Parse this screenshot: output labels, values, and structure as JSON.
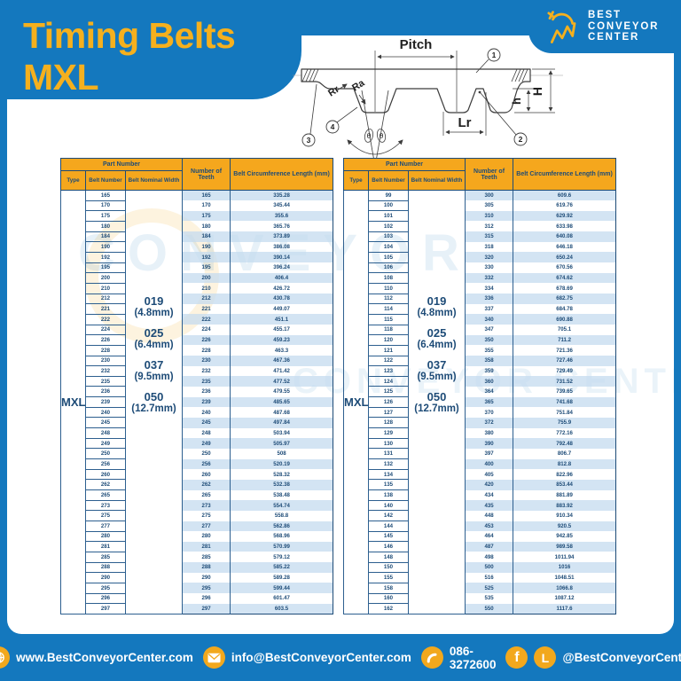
{
  "page": {
    "title": "Timing Belts MXL"
  },
  "logo": {
    "line1": "BEST",
    "line2": "CONVEYOR",
    "line3": "CENTER"
  },
  "watermark": {
    "text1": "CONVEYOR",
    "text2": "CONVEYOR CENTER"
  },
  "diagram": {
    "pitch": "Pitch",
    "rr": "Rr",
    "ra": "Ra",
    "lr": "Lr",
    "big_h": "H",
    "small_h": "h",
    "theta1": "θ",
    "theta2": "θ",
    "callout1": "1",
    "callout2": "2",
    "callout3": "3",
    "callout4": "4"
  },
  "table_headers": {
    "part_number": "Part Number",
    "type": "Type",
    "belt_number": "Belt Number",
    "belt_nominal_width": "Belt Nominal Width",
    "number_of_teeth": "Number of Teeth",
    "belt_circumference_length": "Belt Circumference Length (mm)"
  },
  "type_value": "MXL",
  "nominal_widths": [
    {
      "code": "019",
      "size": "(4.8mm)"
    },
    {
      "code": "025",
      "size": "(6.4mm)"
    },
    {
      "code": "037",
      "size": "(9.5mm)"
    },
    {
      "code": "050",
      "size": "(12.7mm)"
    }
  ],
  "left_table": {
    "rows": [
      [
        "165",
        "165",
        "335.28"
      ],
      [
        "170",
        "170",
        "345.44"
      ],
      [
        "175",
        "175",
        "355.6"
      ],
      [
        "180",
        "180",
        "365.76"
      ],
      [
        "184",
        "184",
        "373.89"
      ],
      [
        "190",
        "190",
        "386.08"
      ],
      [
        "192",
        "192",
        "390.14"
      ],
      [
        "195",
        "195",
        "396.24"
      ],
      [
        "200",
        "200",
        "406.4"
      ],
      [
        "210",
        "210",
        "426.72"
      ],
      [
        "212",
        "212",
        "430.78"
      ],
      [
        "221",
        "221",
        "449.07"
      ],
      [
        "222",
        "222",
        "451.1"
      ],
      [
        "224",
        "224",
        "455.17"
      ],
      [
        "226",
        "226",
        "459.23"
      ],
      [
        "228",
        "228",
        "463.3"
      ],
      [
        "230",
        "230",
        "467.36"
      ],
      [
        "232",
        "232",
        "471.42"
      ],
      [
        "235",
        "235",
        "477.52"
      ],
      [
        "236",
        "236",
        "479.55"
      ],
      [
        "239",
        "239",
        "485.65"
      ],
      [
        "240",
        "240",
        "487.68"
      ],
      [
        "245",
        "245",
        "497.84"
      ],
      [
        "248",
        "248",
        "503.94"
      ],
      [
        "249",
        "249",
        "505.97"
      ],
      [
        "250",
        "250",
        "508"
      ],
      [
        "256",
        "256",
        "520.19"
      ],
      [
        "260",
        "260",
        "528.32"
      ],
      [
        "262",
        "262",
        "532.38"
      ],
      [
        "265",
        "265",
        "538.48"
      ],
      [
        "273",
        "273",
        "554.74"
      ],
      [
        "275",
        "275",
        "558.8"
      ],
      [
        "277",
        "277",
        "562.86"
      ],
      [
        "280",
        "280",
        "568.96"
      ],
      [
        "281",
        "281",
        "570.99"
      ],
      [
        "285",
        "285",
        "579.12"
      ],
      [
        "288",
        "288",
        "585.22"
      ],
      [
        "290",
        "290",
        "589.28"
      ],
      [
        "295",
        "295",
        "599.44"
      ],
      [
        "296",
        "296",
        "601.47"
      ],
      [
        "297",
        "297",
        "603.5"
      ]
    ]
  },
  "right_table": {
    "rows": [
      [
        "99",
        "300",
        "609.6"
      ],
      [
        "100",
        "305",
        "619.76"
      ],
      [
        "101",
        "310",
        "629.92"
      ],
      [
        "102",
        "312",
        "633.98"
      ],
      [
        "103",
        "315",
        "640.08"
      ],
      [
        "104",
        "318",
        "646.18"
      ],
      [
        "105",
        "320",
        "650.24"
      ],
      [
        "106",
        "330",
        "670.56"
      ],
      [
        "108",
        "332",
        "674.62"
      ],
      [
        "110",
        "334",
        "678.69"
      ],
      [
        "112",
        "336",
        "682.75"
      ],
      [
        "114",
        "337",
        "684.78"
      ],
      [
        "115",
        "340",
        "690.88"
      ],
      [
        "118",
        "347",
        "705.1"
      ],
      [
        "120",
        "350",
        "711.2"
      ],
      [
        "121",
        "355",
        "721.36"
      ],
      [
        "122",
        "358",
        "727.46"
      ],
      [
        "123",
        "359",
        "729.49"
      ],
      [
        "124",
        "360",
        "731.52"
      ],
      [
        "125",
        "364",
        "739.65"
      ],
      [
        "126",
        "365",
        "741.68"
      ],
      [
        "127",
        "370",
        "751.84"
      ],
      [
        "128",
        "372",
        "755.9"
      ],
      [
        "129",
        "380",
        "772.16"
      ],
      [
        "130",
        "390",
        "792.48"
      ],
      [
        "131",
        "397",
        "806.7"
      ],
      [
        "132",
        "400",
        "812.8"
      ],
      [
        "134",
        "405",
        "822.96"
      ],
      [
        "135",
        "420",
        "853.44"
      ],
      [
        "138",
        "434",
        "881.89"
      ],
      [
        "140",
        "435",
        "883.92"
      ],
      [
        "142",
        "448",
        "910.34"
      ],
      [
        "144",
        "453",
        "920.5"
      ],
      [
        "145",
        "464",
        "942.85"
      ],
      [
        "146",
        "487",
        "989.58"
      ],
      [
        "148",
        "498",
        "1011.94"
      ],
      [
        "150",
        "500",
        "1016"
      ],
      [
        "155",
        "516",
        "1048.51"
      ],
      [
        "158",
        "525",
        "1066.8"
      ],
      [
        "160",
        "535",
        "1087.12"
      ],
      [
        "162",
        "550",
        "1117.6"
      ]
    ]
  },
  "footer": {
    "website": "www.BestConveyorCenter.com",
    "email": "info@BestConveyorCenter.com",
    "phone": "086-3272600",
    "social": "@BestConveyorCenter"
  }
}
